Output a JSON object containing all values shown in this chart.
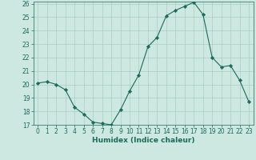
{
  "x": [
    0,
    1,
    2,
    3,
    4,
    5,
    6,
    7,
    8,
    9,
    10,
    11,
    12,
    13,
    14,
    15,
    16,
    17,
    18,
    19,
    20,
    21,
    22,
    23
  ],
  "y": [
    20.1,
    20.2,
    20.0,
    19.6,
    18.3,
    17.8,
    17.2,
    17.1,
    17.0,
    18.1,
    19.5,
    20.7,
    22.8,
    23.5,
    25.1,
    25.5,
    25.8,
    26.1,
    25.2,
    22.0,
    21.3,
    21.4,
    20.3,
    18.7
  ],
  "line_color": "#1a6b5a",
  "marker": "D",
  "marker_size": 2.2,
  "bg_color": "#cce8e0",
  "grid_color": "#aaccc4",
  "xlabel": "Humidex (Indice chaleur)",
  "ylim": [
    17,
    26
  ],
  "xlim": [
    -0.5,
    23.5
  ],
  "yticks": [
    17,
    18,
    19,
    20,
    21,
    22,
    23,
    24,
    25,
    26
  ],
  "xticks": [
    0,
    1,
    2,
    3,
    4,
    5,
    6,
    7,
    8,
    9,
    10,
    11,
    12,
    13,
    14,
    15,
    16,
    17,
    18,
    19,
    20,
    21,
    22,
    23
  ],
  "tick_label_size": 5.5,
  "xlabel_size": 6.5
}
